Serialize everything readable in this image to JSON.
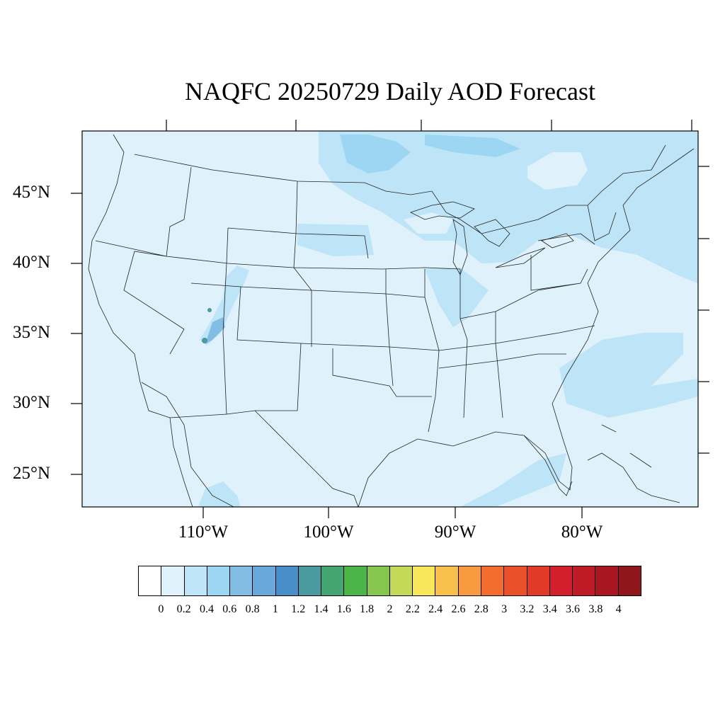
{
  "title": "NAQFC 20250729 Daily AOD Forecast",
  "latitude_labels": [
    "45°N",
    "40°N",
    "35°N",
    "30°N",
    "25°N"
  ],
  "longitude_labels": [
    "110°W",
    "100°W",
    "90°W",
    "80°W"
  ],
  "colorbar": {
    "colors": [
      "#ffffff",
      "#dff1fb",
      "#bde5f7",
      "#9dd6f3",
      "#82bde3",
      "#69a8da",
      "#4a8ec9",
      "#4a9aa0",
      "#44a472",
      "#4bb54a",
      "#86c54e",
      "#c4d957",
      "#f7e85b",
      "#f8c04a",
      "#f89a3f",
      "#f26c2e",
      "#e9512a",
      "#e23a28",
      "#d21f2b",
      "#bf1b26",
      "#a8171f",
      "#8f161a"
    ],
    "labels": [
      "0",
      "0.2",
      "0.4",
      "0.6",
      "0.8",
      "1",
      "1.2",
      "1.4",
      "1.6",
      "1.8",
      "2",
      "2.2",
      "2.4",
      "2.6",
      "2.8",
      "3",
      "3.2",
      "3.4",
      "3.6",
      "3.8",
      "4"
    ]
  },
  "map": {
    "background_color": "#dff1fb",
    "aod_0_4_color": "#bde5f7",
    "aod_0_6_color": "#9dd6f3",
    "aod_1_2_color": "#4a9aa0"
  }
}
